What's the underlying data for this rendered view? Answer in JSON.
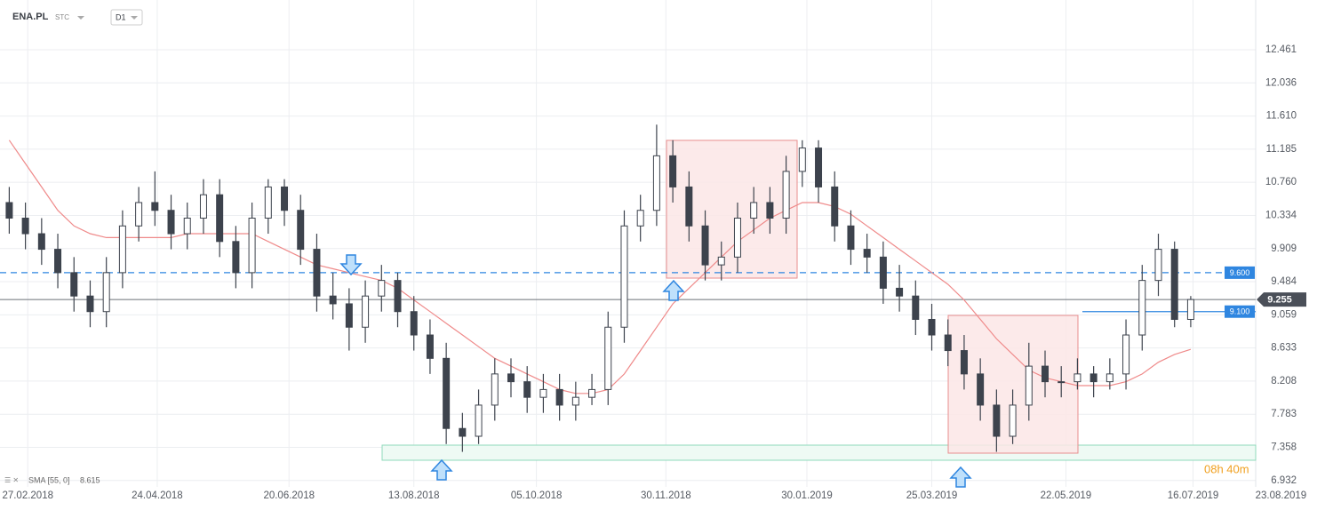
{
  "header": {
    "symbol": "ENA.PL",
    "market": "STC",
    "interval": "D1"
  },
  "chart_data": {
    "type": "candlestick",
    "x": [
      "2018-02-19",
      "2018-02-26",
      "2018-03-05",
      "2018-03-12",
      "2018-03-19",
      "2018-03-26",
      "2018-04-02",
      "2018-04-09",
      "2018-04-16",
      "2018-04-23",
      "2018-04-30",
      "2018-05-07",
      "2018-05-14",
      "2018-05-21",
      "2018-05-28",
      "2018-06-04",
      "2018-06-11",
      "2018-06-18",
      "2018-06-25",
      "2018-07-02",
      "2018-07-09",
      "2018-07-16",
      "2018-07-23",
      "2018-07-30",
      "2018-08-06",
      "2018-08-13",
      "2018-08-20",
      "2018-08-27",
      "2018-09-03",
      "2018-09-10",
      "2018-09-17",
      "2018-09-24",
      "2018-10-01",
      "2018-10-08",
      "2018-10-15",
      "2018-10-22",
      "2018-10-29",
      "2018-11-05",
      "2018-11-12",
      "2018-11-19",
      "2018-11-26",
      "2018-12-03",
      "2018-12-10",
      "2018-12-17",
      "2018-12-24",
      "2018-12-31",
      "2019-01-07",
      "2019-01-14",
      "2019-01-21",
      "2019-01-28",
      "2019-02-04",
      "2019-02-11",
      "2019-02-18",
      "2019-02-25",
      "2019-03-04",
      "2019-03-11",
      "2019-03-18",
      "2019-03-25",
      "2019-04-01",
      "2019-04-08",
      "2019-04-15",
      "2019-04-22",
      "2019-04-29",
      "2019-05-06",
      "2019-05-13",
      "2019-05-20",
      "2019-05-27",
      "2019-06-03",
      "2019-06-10",
      "2019-06-17",
      "2019-06-24",
      "2019-07-01",
      "2019-07-08",
      "2019-07-15"
    ],
    "open": [
      10.5,
      10.3,
      10.1,
      9.9,
      9.6,
      9.3,
      9.1,
      9.6,
      10.2,
      10.5,
      10.4,
      10.1,
      10.3,
      10.6,
      10.0,
      9.6,
      10.3,
      10.7,
      10.4,
      9.9,
      9.3,
      9.2,
      8.9,
      9.3,
      9.5,
      9.1,
      8.8,
      8.5,
      7.6,
      7.5,
      7.9,
      8.3,
      8.2,
      8.0,
      8.1,
      7.9,
      8.0,
      8.1,
      8.9,
      10.2,
      10.4,
      11.1,
      10.7,
      10.2,
      9.7,
      9.8,
      10.3,
      10.5,
      10.3,
      10.9,
      11.2,
      10.7,
      10.2,
      9.9,
      9.8,
      9.4,
      9.3,
      9.0,
      8.8,
      8.6,
      8.3,
      7.9,
      7.5,
      7.9,
      8.4,
      8.2,
      8.2,
      8.3,
      8.2,
      8.3,
      8.8,
      9.5,
      9.9,
      9.0
    ],
    "high": [
      10.7,
      10.5,
      10.3,
      10.1,
      9.8,
      9.5,
      9.8,
      10.4,
      10.7,
      10.9,
      10.6,
      10.5,
      10.8,
      10.8,
      10.2,
      10.5,
      10.8,
      10.8,
      10.6,
      10.1,
      9.6,
      9.4,
      9.5,
      9.7,
      9.6,
      9.3,
      9.0,
      8.7,
      7.8,
      8.1,
      8.5,
      8.5,
      8.4,
      8.3,
      8.3,
      8.2,
      8.3,
      9.1,
      10.4,
      10.6,
      11.5,
      11.3,
      10.9,
      10.4,
      10.0,
      10.5,
      10.7,
      10.7,
      11.1,
      11.3,
      11.3,
      10.9,
      10.4,
      10.1,
      10.0,
      9.7,
      9.5,
      9.2,
      9.0,
      8.8,
      8.5,
      8.1,
      8.1,
      8.7,
      8.6,
      8.4,
      8.5,
      8.4,
      8.5,
      9.0,
      9.7,
      10.1,
      10.0,
      9.3
    ],
    "low": [
      10.1,
      9.9,
      9.7,
      9.4,
      9.1,
      8.9,
      8.9,
      9.4,
      10.0,
      10.2,
      9.9,
      9.9,
      10.1,
      9.8,
      9.4,
      9.4,
      10.1,
      10.2,
      9.7,
      9.1,
      9.0,
      8.6,
      8.7,
      9.1,
      8.9,
      8.6,
      8.3,
      7.4,
      7.3,
      7.4,
      7.7,
      8.0,
      7.8,
      7.8,
      7.7,
      7.7,
      7.9,
      7.9,
      8.7,
      10.0,
      10.2,
      10.5,
      10.0,
      9.5,
      9.5,
      9.6,
      10.1,
      10.1,
      10.1,
      10.7,
      10.5,
      10.0,
      9.7,
      9.6,
      9.2,
      9.1,
      8.8,
      8.6,
      8.4,
      8.1,
      7.7,
      7.3,
      7.4,
      7.7,
      8.0,
      8.0,
      8.1,
      8.0,
      8.1,
      8.1,
      8.6,
      9.3,
      8.9,
      8.9
    ],
    "close": [
      10.3,
      10.1,
      9.9,
      9.6,
      9.3,
      9.1,
      9.6,
      10.2,
      10.5,
      10.4,
      10.1,
      10.3,
      10.6,
      10.0,
      9.6,
      10.3,
      10.7,
      10.4,
      9.9,
      9.3,
      9.2,
      8.9,
      9.3,
      9.5,
      9.1,
      8.8,
      8.5,
      7.6,
      7.5,
      7.9,
      8.3,
      8.2,
      8.0,
      8.1,
      7.9,
      8.0,
      8.1,
      8.9,
      10.2,
      10.4,
      11.1,
      10.7,
      10.2,
      9.7,
      9.8,
      10.3,
      10.5,
      10.3,
      10.9,
      11.2,
      10.7,
      10.2,
      9.9,
      9.8,
      9.4,
      9.3,
      9.0,
      8.8,
      8.6,
      8.3,
      7.9,
      7.5,
      7.9,
      8.4,
      8.2,
      8.2,
      8.3,
      8.2,
      8.3,
      8.8,
      9.5,
      9.9,
      9.0,
      9.255
    ],
    "up_color": "#ffffff",
    "down_color": "#3d434d",
    "edge_color": "#3d434d",
    "sma": {
      "name": "SMA [55, 0]",
      "color": "#ef8a8a",
      "values": [
        11.3,
        11.0,
        10.7,
        10.4,
        10.2,
        10.1,
        10.05,
        10.05,
        10.05,
        10.05,
        10.05,
        10.1,
        10.1,
        10.1,
        10.1,
        10.1,
        10.0,
        9.9,
        9.8,
        9.7,
        9.65,
        9.6,
        9.55,
        9.5,
        9.4,
        9.25,
        9.1,
        8.95,
        8.8,
        8.65,
        8.5,
        8.4,
        8.3,
        8.2,
        8.1,
        8.05,
        8.05,
        8.1,
        8.3,
        8.6,
        8.9,
        9.2,
        9.4,
        9.6,
        9.8,
        10.0,
        10.15,
        10.3,
        10.4,
        10.5,
        10.5,
        10.45,
        10.35,
        10.2,
        10.05,
        9.9,
        9.75,
        9.6,
        9.45,
        9.25,
        9.0,
        8.75,
        8.55,
        8.35,
        8.25,
        8.2,
        8.15,
        8.15,
        8.15,
        8.2,
        8.3,
        8.45,
        8.55,
        8.615
      ]
    },
    "xlim": [
      "2018-02-15",
      "2019-09-03"
    ],
    "xticks": [
      {
        "value": "2018-02-27",
        "label": "27.02.2018"
      },
      {
        "value": "2018-04-24",
        "label": "24.04.2018"
      },
      {
        "value": "2018-06-20",
        "label": "20.06.2018"
      },
      {
        "value": "2018-08-13",
        "label": "13.08.2018"
      },
      {
        "value": "2018-10-05",
        "label": "05.10.2018"
      },
      {
        "value": "2018-11-30",
        "label": "30.11.2018"
      },
      {
        "value": "2019-01-30",
        "label": "30.01.2019"
      },
      {
        "value": "2019-03-25",
        "label": "25.03.2019"
      },
      {
        "value": "2019-05-22",
        "label": "22.05.2019"
      },
      {
        "value": "2019-07-16",
        "label": "16.07.2019"
      },
      {
        "value": "2019-08-23",
        "label": "23.08.2019"
      }
    ],
    "ylim": [
      6.85,
      13.1
    ],
    "yticks": [
      12.461,
      12.036,
      {
        "value": 11.61,
        "label": "11.610"
      },
      11.185,
      {
        "value": 10.76,
        "label": "10.760"
      },
      10.334,
      9.909,
      9.484,
      9.059,
      8.633,
      8.208,
      7.783,
      7.358,
      6.932
    ],
    "grid": true,
    "levels": [
      {
        "value": 9.6,
        "label": "9.600",
        "style": "dashed",
        "color": "#2f86e0"
      },
      {
        "value": 9.1,
        "label": "9.100",
        "style": "solid",
        "color": "#2f86e0"
      }
    ],
    "current": {
      "value": 9.255,
      "label": "9.255",
      "color": "#4a4f58"
    },
    "timer": "08h 40m"
  }
}
